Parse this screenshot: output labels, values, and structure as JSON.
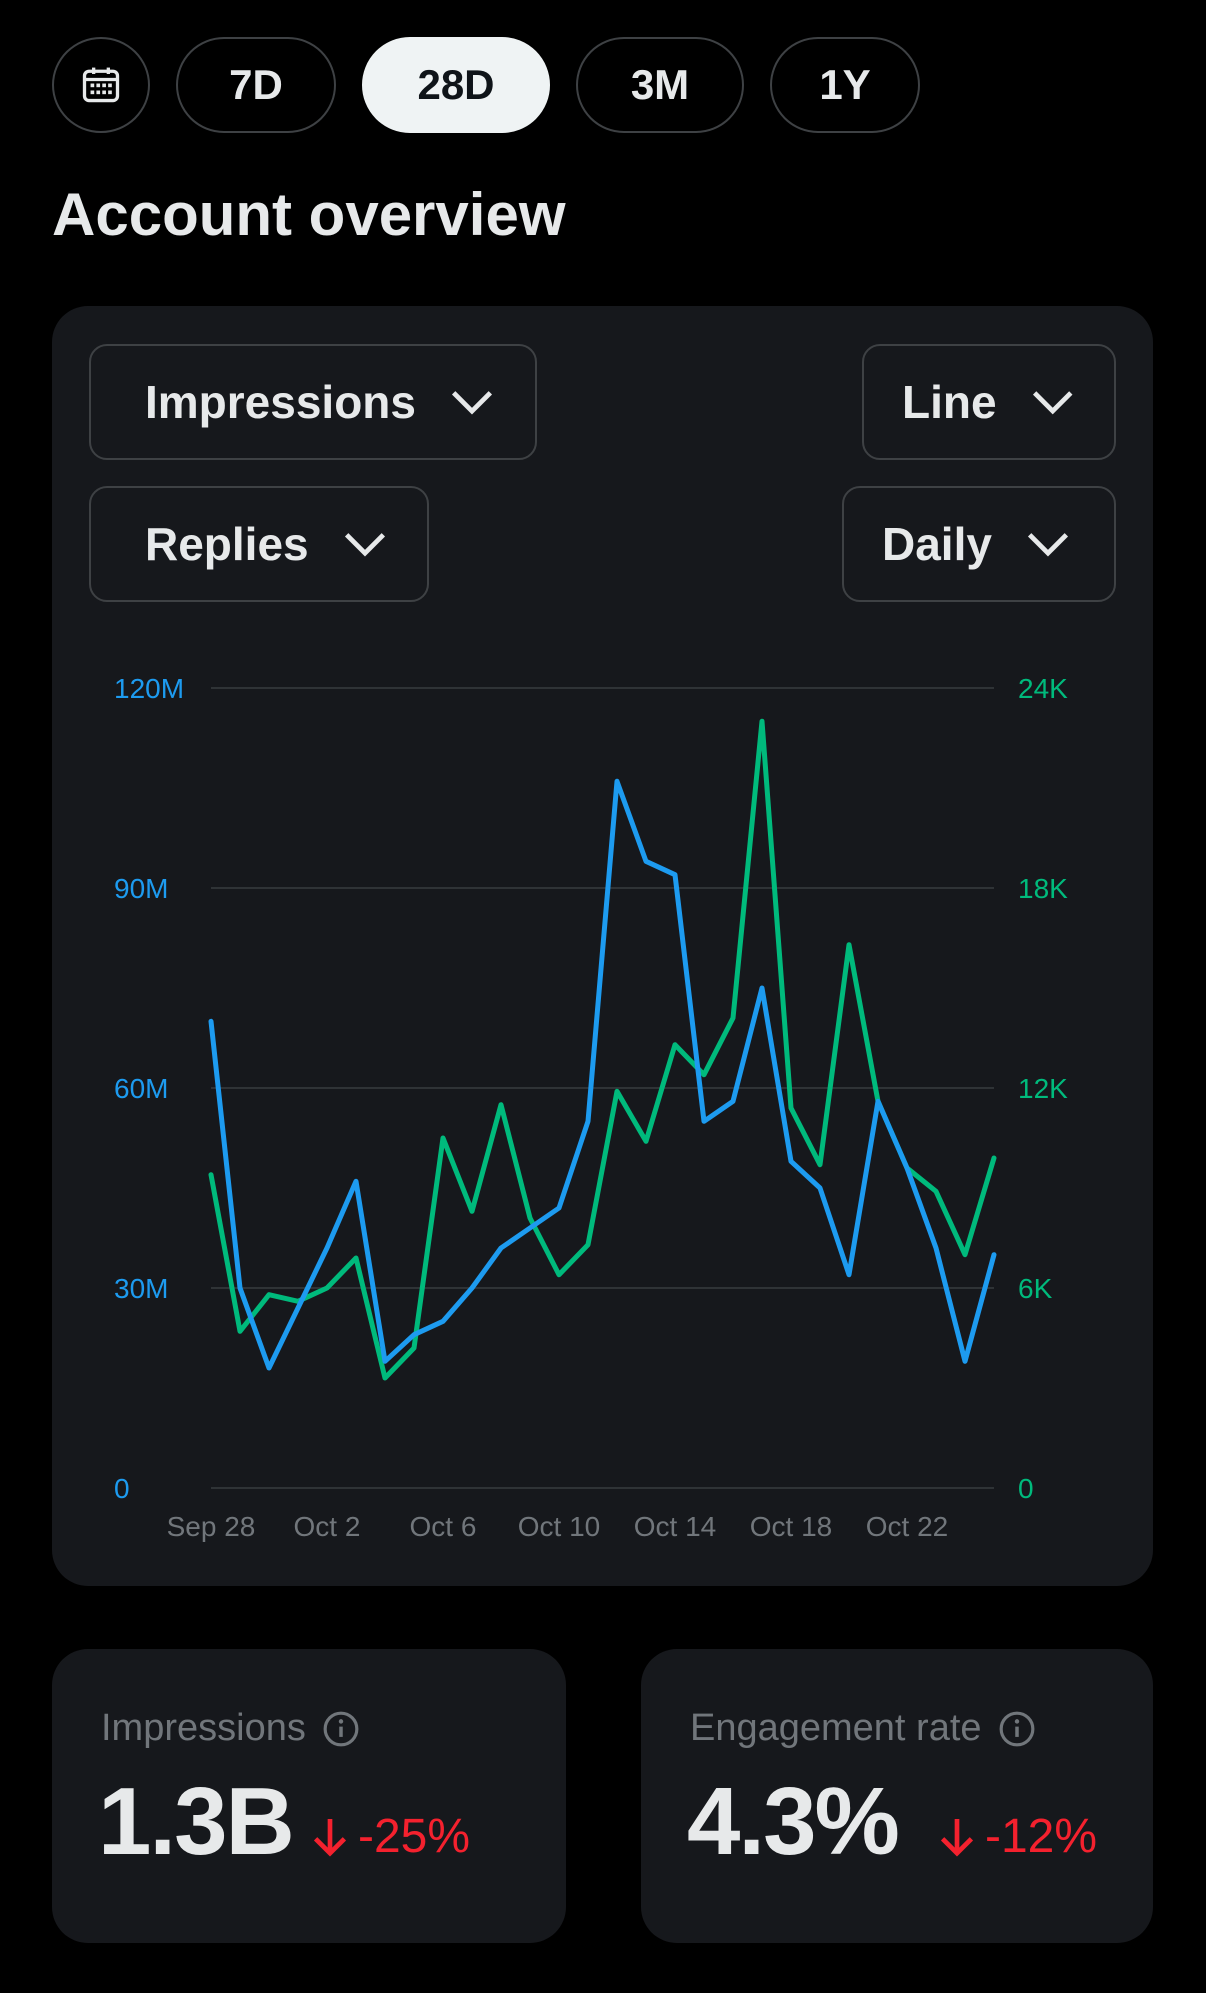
{
  "range_selector": {
    "options": [
      "7D",
      "28D",
      "3M",
      "1Y"
    ],
    "selected": "28D"
  },
  "page_title": "Account overview",
  "controls": {
    "primary_metric": "Impressions",
    "chart_type": "Line",
    "secondary_metric": "Replies",
    "interval": "Daily"
  },
  "colors": {
    "impressions": "#1d9bf0",
    "replies": "#00ba7c",
    "negative": "#f4212e"
  },
  "chart_data": {
    "type": "line",
    "x": [
      "Sep 28",
      "Sep 29",
      "Sep 30",
      "Oct 1",
      "Oct 2",
      "Oct 3",
      "Oct 4",
      "Oct 5",
      "Oct 6",
      "Oct 7",
      "Oct 8",
      "Oct 9",
      "Oct 10",
      "Oct 11",
      "Oct 12",
      "Oct 13",
      "Oct 14",
      "Oct 15",
      "Oct 16",
      "Oct 17",
      "Oct 18",
      "Oct 19",
      "Oct 20",
      "Oct 21",
      "Oct 22",
      "Oct 23",
      "Oct 24",
      "Oct 25"
    ],
    "x_tick_labels": [
      "Sep 28",
      "Oct 2",
      "Oct 6",
      "Oct 10",
      "Oct 14",
      "Oct 18",
      "Oct 22"
    ],
    "y_left": {
      "label": "Impressions",
      "ticks": [
        "0",
        "30M",
        "60M",
        "90M",
        "120M"
      ],
      "range": [
        0,
        120000000
      ]
    },
    "y_right": {
      "label": "Replies",
      "ticks": [
        "0",
        "6K",
        "12K",
        "18K",
        "24K"
      ],
      "range": [
        0,
        24000
      ]
    },
    "series": [
      {
        "name": "Impressions",
        "axis": "left",
        "values": [
          70000000,
          30000000,
          18000000,
          27000000,
          36000000,
          46000000,
          19000000,
          23000000,
          25000000,
          30000000,
          36000000,
          39000000,
          42000000,
          55000000,
          106000000,
          94000000,
          92000000,
          55000000,
          58000000,
          75000000,
          49000000,
          45000000,
          32000000,
          58000000,
          48000000,
          36000000,
          19000000,
          35000000
        ]
      },
      {
        "name": "Replies",
        "axis": "right",
        "values": [
          9400,
          4700,
          5800,
          5600,
          6000,
          6900,
          3300,
          4200,
          10500,
          8300,
          11500,
          8100,
          6400,
          7300,
          11900,
          10400,
          13300,
          12400,
          14100,
          23000,
          11400,
          9700,
          16300,
          11600,
          9600,
          8900,
          7000,
          9900
        ]
      }
    ],
    "grid": true
  },
  "metrics": [
    {
      "label": "Impressions",
      "value": "1.3B",
      "change": "-25%"
    },
    {
      "label": "Engagement rate",
      "value": "4.3%",
      "change": "-12%"
    }
  ]
}
